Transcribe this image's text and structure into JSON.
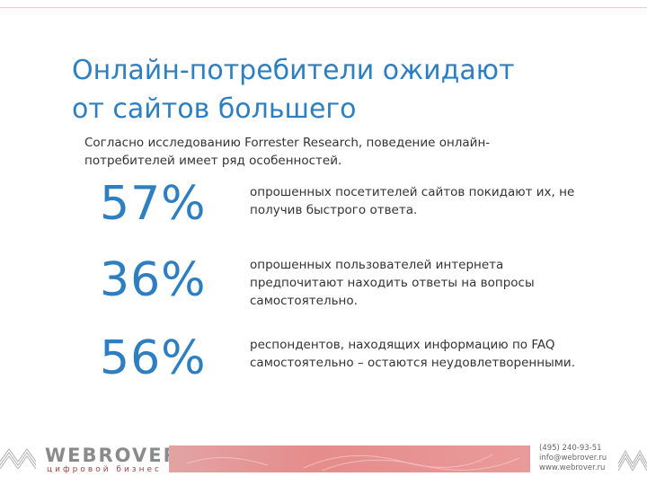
{
  "slide": {
    "title_lines": [
      "Онлайн-потребители ожидают",
      "от сайтов большего"
    ],
    "subtitle_lines": [
      "Согласно исследованию Forrester Research, поведение онлайн-",
      "потребителей имеет ряд особенностей."
    ],
    "stats": [
      {
        "value": "57%",
        "desc_lines": [
          "опрошенных посетителей сайтов покидают их, не",
          "получив быстрого ответа."
        ]
      },
      {
        "value": "36%",
        "desc_lines": [
          "опрошенных пользователей интернета",
          "предпочитают находить ответы на вопросы",
          "самостоятельно."
        ]
      },
      {
        "value": "56%",
        "desc_lines": [
          "респондентов, находящих информацию по FAQ",
          "самостоятельно – остаются неудовлетворенными."
        ]
      }
    ]
  },
  "footer": {
    "logo": "WEBROVER",
    "tagline": "цифровой бизнес",
    "contacts": [
      "(495) 240-93-51",
      "info@webrover.ru",
      "www.webrover.ru"
    ]
  },
  "colors": {
    "accent": "#2d7fc1",
    "brand_red": "#e58c8c",
    "text": "#333333"
  }
}
